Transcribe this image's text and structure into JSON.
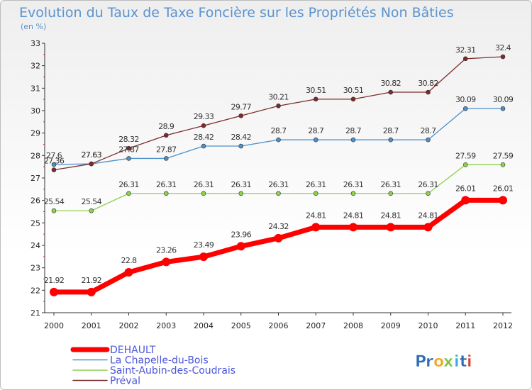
{
  "chart_data": {
    "type": "line",
    "title": "Evolution du Taux de Taxe Foncière sur les Propriétés Non Bâties",
    "subtitle": "(en %)",
    "xlabel": "",
    "ylabel": "",
    "x": [
      "2000",
      "2001",
      "2002",
      "2003",
      "2004",
      "2005",
      "2006",
      "2007",
      "2008",
      "2009",
      "2010",
      "2011",
      "2012"
    ],
    "ylim": [
      21,
      33
    ],
    "yticks": [
      "21",
      "22",
      "23",
      "24",
      "25",
      "26",
      "27",
      "28",
      "29",
      "30",
      "31",
      "32",
      "33"
    ],
    "grid": false,
    "legend_position": "bottom-left",
    "series": [
      {
        "name": "DEHAULT",
        "color": "#ff0000",
        "values": [
          21.92,
          21.92,
          22.8,
          23.26,
          23.49,
          23.96,
          24.32,
          24.81,
          24.81,
          24.81,
          24.81,
          26.01,
          26.01
        ],
        "labels": [
          "21.92",
          "21.92",
          "22.8",
          "23.26",
          "23.49",
          "23.96",
          "24.32",
          "24.81",
          "24.81",
          "24.81",
          "24.81",
          "26.01",
          "26.01"
        ]
      },
      {
        "name": "La Chapelle-du-Bois",
        "color": "#4f8fc9",
        "values": [
          27.6,
          27.63,
          27.87,
          27.87,
          28.42,
          28.42,
          28.7,
          28.7,
          28.7,
          28.7,
          28.7,
          30.09,
          30.09
        ],
        "labels": [
          "27.6",
          "27.63",
          "27.87",
          "27.87",
          "28.42",
          "28.42",
          "28.7",
          "28.7",
          "28.7",
          "28.7",
          "28.7",
          "30.09",
          "30.09"
        ]
      },
      {
        "name": "Saint-Aubin-des-Coudrais",
        "color": "#8dd14a",
        "values": [
          25.54,
          25.54,
          26.31,
          26.31,
          26.31,
          26.31,
          26.31,
          26.31,
          26.31,
          26.31,
          26.31,
          27.59,
          27.59
        ],
        "labels": [
          "25.54",
          "25.54",
          "26.31",
          "26.31",
          "26.31",
          "26.31",
          "26.31",
          "26.31",
          "26.31",
          "26.31",
          "26.31",
          "27.59",
          "27.59"
        ]
      },
      {
        "name": "Préval",
        "color": "#7b2b2b",
        "values": [
          27.36,
          27.63,
          28.32,
          28.9,
          29.33,
          29.77,
          30.21,
          30.51,
          30.51,
          30.82,
          30.82,
          32.31,
          32.4
        ],
        "labels": [
          "27.36",
          "27.63",
          "28.32",
          "28.9",
          "29.33",
          "29.77",
          "30.21",
          "30.51",
          "30.51",
          "30.82",
          "30.82",
          "32.31",
          "32.4"
        ]
      }
    ]
  },
  "brand": {
    "text": "Proxiti",
    "letters": [
      "P",
      "r",
      "o",
      "x",
      "i",
      "t",
      "i"
    ]
  }
}
